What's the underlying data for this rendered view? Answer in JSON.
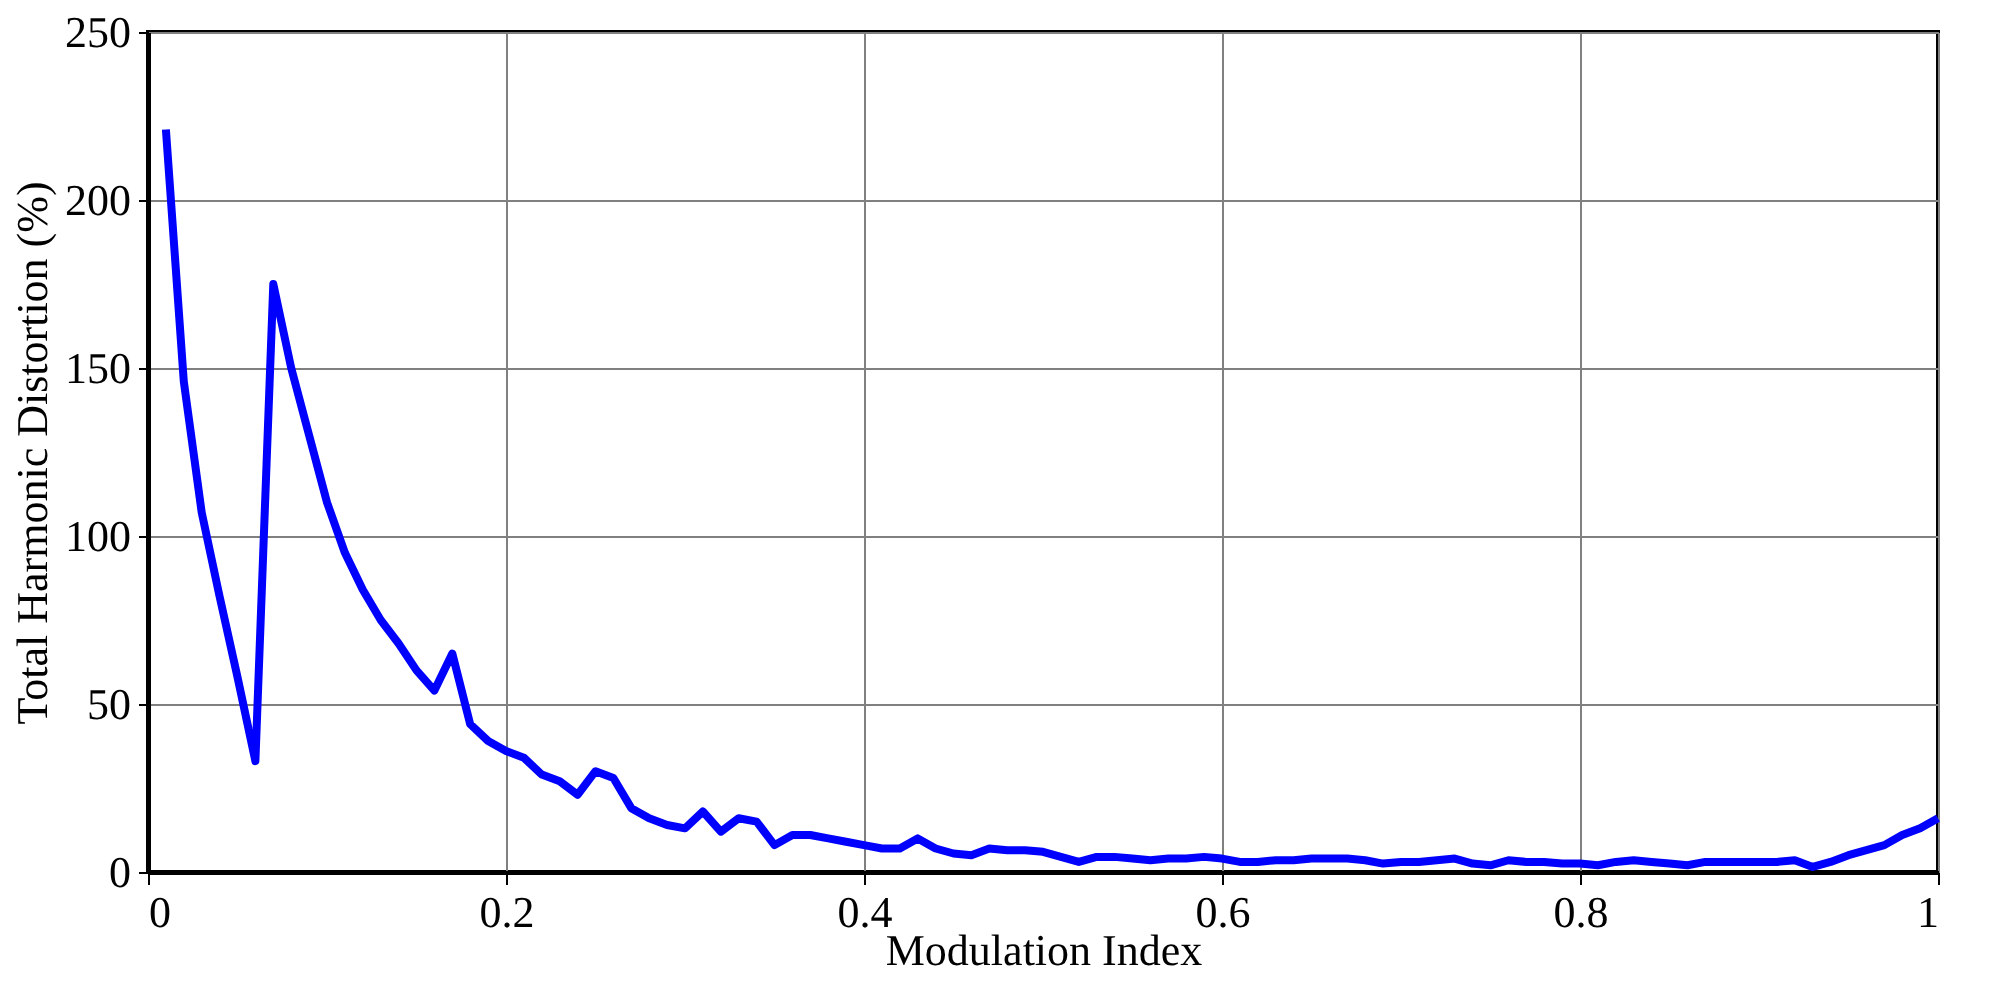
{
  "chart_data": {
    "type": "line",
    "xlabel": "Modulation Index",
    "ylabel": "Total Harmonic Distortion (%)",
    "x": [
      0.01,
      0.02,
      0.03,
      0.04,
      0.05,
      0.06,
      0.07,
      0.08,
      0.09,
      0.1,
      0.11,
      0.12,
      0.13,
      0.14,
      0.15,
      0.16,
      0.17,
      0.18,
      0.19,
      0.2,
      0.21,
      0.22,
      0.23,
      0.24,
      0.25,
      0.26,
      0.27,
      0.28,
      0.29,
      0.3,
      0.31,
      0.32,
      0.33,
      0.34,
      0.35,
      0.36,
      0.37,
      0.38,
      0.39,
      0.4,
      0.41,
      0.42,
      0.43,
      0.44,
      0.45,
      0.46,
      0.47,
      0.48,
      0.49,
      0.5,
      0.51,
      0.52,
      0.53,
      0.54,
      0.55,
      0.56,
      0.57,
      0.58,
      0.59,
      0.6,
      0.61,
      0.62,
      0.63,
      0.64,
      0.65,
      0.66,
      0.67,
      0.68,
      0.69,
      0.7,
      0.71,
      0.72,
      0.73,
      0.74,
      0.75,
      0.76,
      0.77,
      0.78,
      0.79,
      0.8,
      0.81,
      0.82,
      0.83,
      0.84,
      0.85,
      0.86,
      0.87,
      0.88,
      0.89,
      0.9,
      0.91,
      0.92,
      0.93,
      0.94,
      0.95,
      0.96,
      0.97,
      0.98,
      0.99,
      1.0
    ],
    "series": [
      {
        "color": "#0000ff",
        "values": [
          221,
          146,
          107,
          82,
          58,
          33,
          175,
          150,
          130,
          110,
          95,
          84,
          75,
          68,
          60,
          54,
          65,
          44,
          39,
          36,
          34,
          29,
          27,
          23,
          30,
          28,
          19,
          16,
          14,
          13,
          18,
          12,
          16,
          15,
          8,
          11,
          11,
          10,
          9,
          8,
          7,
          7,
          10,
          7,
          5.5,
          5,
          7,
          6.5,
          6.5,
          6,
          4.5,
          3,
          4.5,
          4.5,
          4,
          3.5,
          4,
          4,
          4.5,
          4,
          3,
          3,
          3.5,
          3.5,
          4,
          4,
          4,
          3.5,
          2.5,
          3,
          3,
          3.5,
          4,
          2.5,
          2,
          3.5,
          3,
          3,
          2.5,
          2.5,
          2,
          3,
          3.5,
          3,
          2.5,
          2,
          3,
          3,
          3,
          3,
          3,
          3.5,
          1.5,
          3,
          5,
          6.5,
          8,
          11,
          13,
          16
        ]
      }
    ],
    "xlim": [
      0,
      1
    ],
    "ylim": [
      0,
      250
    ],
    "xticks": [
      0,
      0.2,
      0.4,
      0.6,
      0.8,
      1
    ],
    "yticks": [
      0,
      50,
      100,
      150,
      200,
      250
    ],
    "grid": true,
    "line_style": "solid",
    "marker": "none"
  }
}
